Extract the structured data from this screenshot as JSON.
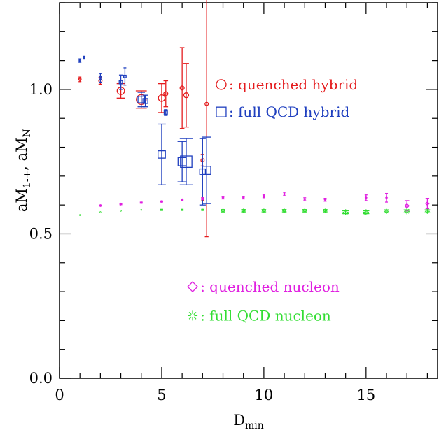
{
  "chart_data": {
    "type": "scatter",
    "xlabel": "D",
    "xlabel_sub": "min",
    "ylabel": "aM",
    "ylabel_sub": "1-+",
    "ylabel_mid": ", aM",
    "ylabel_sub2": "N",
    "xlim": [
      0,
      18.5
    ],
    "ylim": [
      0.0,
      1.3
    ],
    "x_major_ticks": [
      0,
      5,
      10,
      15
    ],
    "x_tick_labels": [
      "0",
      "5",
      "10",
      "15"
    ],
    "y_major_ticks": [
      0.0,
      0.5,
      1.0
    ],
    "y_tick_labels": [
      "0.0",
      "0.5",
      "1.0"
    ],
    "grid": false,
    "legend": [
      {
        "series": "quenched_hybrid",
        "label": "quenched hybrid",
        "marker": "circle",
        "color": "#e41a1c",
        "text_color": "#e41a1c"
      },
      {
        "series": "full_qcd_hybrid",
        "label": "full QCD hybrid",
        "marker": "square",
        "color": "#1f3fbf",
        "text_color": "#1f3fbf"
      },
      {
        "series": "quenched_nucleon",
        "label": "quenched nucleon",
        "marker": "diamond",
        "color": "#e020e0",
        "text_color": "#e020e0"
      },
      {
        "series": "full_qcd_nucleon",
        "label": "full QCD nucleon",
        "marker": "star",
        "color": "#33dd33",
        "text_color": "#33dd33"
      }
    ],
    "series": [
      {
        "name": "quenched hybrid",
        "key": "quenched_hybrid",
        "marker": "circle",
        "color": "#e41a1c",
        "points": [
          {
            "x": 1.0,
            "y": 1.035,
            "err": 0.008,
            "size": 0.15
          },
          {
            "x": 2.0,
            "y": 1.03,
            "err": 0.012,
            "size": 0.2
          },
          {
            "x": 3.0,
            "y": 0.995,
            "err": 0.025,
            "size": 0.45
          },
          {
            "x": 4.0,
            "y": 0.965,
            "err": 0.03,
            "size": 0.6
          },
          {
            "x": 5.0,
            "y": 0.97,
            "err": 0.05,
            "size": 0.4
          },
          {
            "x": 5.2,
            "y": 0.985,
            "err": 0.045,
            "size": 0.25
          },
          {
            "x": 6.0,
            "y": 1.005,
            "err": 0.14,
            "size": 0.25
          },
          {
            "x": 6.2,
            "y": 0.98,
            "err": 0.11,
            "size": 0.3
          },
          {
            "x": 7.0,
            "y": 0.755,
            "err": 0.02,
            "size": 0.2
          },
          {
            "x": 7.2,
            "y": 0.95,
            "err": 0.46,
            "size": 0.2
          },
          {
            "x": 7.0,
            "y": 0.62,
            "err": 0.005,
            "size": 0.1
          }
        ]
      },
      {
        "name": "full QCD hybrid",
        "key": "full_qcd_hybrid",
        "marker": "square",
        "color": "#1f3fbf",
        "points": [
          {
            "x": 1.0,
            "y": 1.1,
            "err": 0.006,
            "size": 0.1
          },
          {
            "x": 1.2,
            "y": 1.11,
            "err": 0.005,
            "size": 0.1
          },
          {
            "x": 2.0,
            "y": 1.04,
            "err": 0.015,
            "size": 0.15
          },
          {
            "x": 3.0,
            "y": 1.025,
            "err": 0.025,
            "size": 0.2
          },
          {
            "x": 3.2,
            "y": 1.045,
            "err": 0.03,
            "size": 0.15
          },
          {
            "x": 4.0,
            "y": 0.965,
            "err": 0.025,
            "size": 0.4
          },
          {
            "x": 4.2,
            "y": 0.96,
            "err": 0.02,
            "size": 0.3
          },
          {
            "x": 5.0,
            "y": 0.775,
            "err": 0.105,
            "size": 0.45
          },
          {
            "x": 5.2,
            "y": 0.92,
            "err": 0.01,
            "size": 0.2
          },
          {
            "x": 6.0,
            "y": 0.75,
            "err": 0.07,
            "size": 0.5
          },
          {
            "x": 6.2,
            "y": 0.75,
            "err": 0.08,
            "size": 0.7
          },
          {
            "x": 7.0,
            "y": 0.715,
            "err": 0.115,
            "size": 0.35
          },
          {
            "x": 7.2,
            "y": 0.72,
            "err": 0.115,
            "size": 0.5
          }
        ]
      },
      {
        "name": "quenched nucleon",
        "key": "quenched_nucleon",
        "marker": "diamond",
        "color": "#e020e0",
        "points": [
          {
            "x": 2.0,
            "y": 0.598,
            "err": 0.002,
            "size": 0.02
          },
          {
            "x": 3.0,
            "y": 0.603,
            "err": 0.002,
            "size": 0.02
          },
          {
            "x": 4.0,
            "y": 0.608,
            "err": 0.002,
            "size": 0.02
          },
          {
            "x": 5.0,
            "y": 0.612,
            "err": 0.002,
            "size": 0.02
          },
          {
            "x": 6.0,
            "y": 0.618,
            "err": 0.002,
            "size": 0.02
          },
          {
            "x": 7.0,
            "y": 0.622,
            "err": 0.003,
            "size": 0.05
          },
          {
            "x": 8.0,
            "y": 0.625,
            "err": 0.004,
            "size": 0.1
          },
          {
            "x": 9.0,
            "y": 0.625,
            "err": 0.004,
            "size": 0.1
          },
          {
            "x": 10.0,
            "y": 0.63,
            "err": 0.005,
            "size": 0.12
          },
          {
            "x": 11.0,
            "y": 0.638,
            "err": 0.006,
            "size": 0.05
          },
          {
            "x": 12.0,
            "y": 0.62,
            "err": 0.005,
            "size": 0.1
          },
          {
            "x": 13.0,
            "y": 0.618,
            "err": 0.005,
            "size": 0.1
          },
          {
            "x": 15.0,
            "y": 0.625,
            "err": 0.01,
            "size": 0.05
          },
          {
            "x": 16.0,
            "y": 0.625,
            "err": 0.015,
            "size": 0.05
          },
          {
            "x": 17.0,
            "y": 0.597,
            "err": 0.018,
            "size": 0.25
          },
          {
            "x": 18.0,
            "y": 0.605,
            "err": 0.018,
            "size": 0.2
          }
        ]
      },
      {
        "name": "full QCD nucleon",
        "key": "full_qcd_nucleon",
        "marker": "star",
        "color": "#33dd33",
        "points": [
          {
            "x": 1.0,
            "y": 0.565,
            "err": 0.001,
            "size": 0.02
          },
          {
            "x": 2.0,
            "y": 0.575,
            "err": 0.001,
            "size": 0.02
          },
          {
            "x": 3.0,
            "y": 0.58,
            "err": 0.001,
            "size": 0.02
          },
          {
            "x": 4.0,
            "y": 0.583,
            "err": 0.001,
            "size": 0.03
          },
          {
            "x": 5.0,
            "y": 0.583,
            "err": 0.002,
            "size": 0.1
          },
          {
            "x": 6.0,
            "y": 0.583,
            "err": 0.002,
            "size": 0.1
          },
          {
            "x": 7.0,
            "y": 0.583,
            "err": 0.002,
            "size": 0.12
          },
          {
            "x": 8.0,
            "y": 0.58,
            "err": 0.004,
            "size": 0.25
          },
          {
            "x": 9.0,
            "y": 0.58,
            "err": 0.004,
            "size": 0.25
          },
          {
            "x": 10.0,
            "y": 0.58,
            "err": 0.004,
            "size": 0.25
          },
          {
            "x": 11.0,
            "y": 0.58,
            "err": 0.004,
            "size": 0.25
          },
          {
            "x": 12.0,
            "y": 0.58,
            "err": 0.004,
            "size": 0.25
          },
          {
            "x": 13.0,
            "y": 0.58,
            "err": 0.004,
            "size": 0.25
          },
          {
            "x": 14.0,
            "y": 0.575,
            "err": 0.005,
            "size": 0.35
          },
          {
            "x": 15.0,
            "y": 0.575,
            "err": 0.005,
            "size": 0.35
          },
          {
            "x": 16.0,
            "y": 0.578,
            "err": 0.005,
            "size": 0.3
          },
          {
            "x": 17.0,
            "y": 0.578,
            "err": 0.005,
            "size": 0.35
          },
          {
            "x": 18.0,
            "y": 0.578,
            "err": 0.005,
            "size": 0.3
          }
        ]
      }
    ]
  }
}
